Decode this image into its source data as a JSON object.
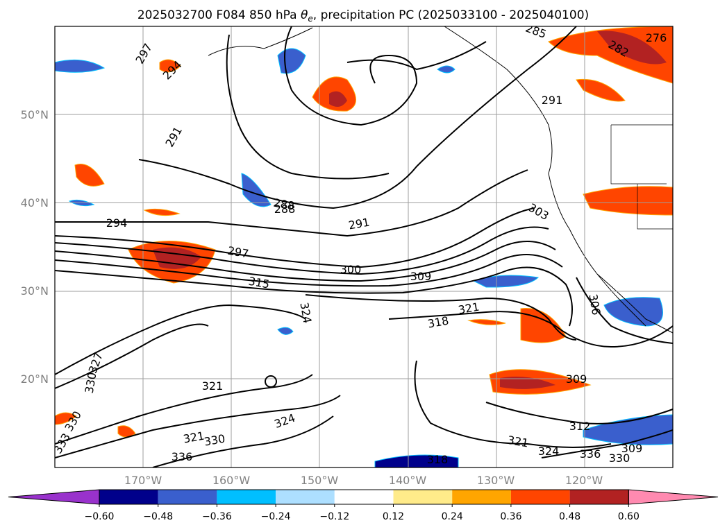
{
  "title_parts": {
    "prefix": "2025032700 F084 850 hPa ",
    "theta": "θ",
    "theta_sub": "e",
    "suffix": ", precipitation PC (2025033100 - 2025040100)"
  },
  "map": {
    "lat_ticks": [
      {
        "label": "50°N",
        "value": 50
      },
      {
        "label": "40°N",
        "value": 40
      },
      {
        "label": "30°N",
        "value": 30
      },
      {
        "label": "20°N",
        "value": 20
      }
    ],
    "lon_ticks": [
      {
        "label": "170°W",
        "value": -170
      },
      {
        "label": "160°W",
        "value": -160
      },
      {
        "label": "150°W",
        "value": -150
      },
      {
        "label": "140°W",
        "value": -140
      },
      {
        "label": "130°W",
        "value": -130
      },
      {
        "label": "120°W",
        "value": -120
      }
    ],
    "contour_labels": [
      "297",
      "294",
      "291",
      "288",
      "285",
      "282",
      "276",
      "291",
      "294",
      "288",
      "291",
      "303",
      "297",
      "315",
      "324",
      "300",
      "309",
      "306",
      "321",
      "318",
      "327",
      "330",
      "321",
      "324",
      "321",
      "330",
      "336",
      "309",
      "312",
      "321",
      "324",
      "336",
      "330",
      "309",
      "318",
      "330",
      "333"
    ],
    "grid": true
  },
  "colorbar": {
    "ticks": [
      "−0.60",
      "−0.48",
      "−0.36",
      "−0.24",
      "−0.12",
      "0.12",
      "0.24",
      "0.36",
      "0.48",
      "0.60"
    ],
    "colors": {
      "under": "#9932CC",
      "c1": "#00008B",
      "c2": "#3A5FCD",
      "c3": "#00BFFF",
      "c4": "#ADDFFF",
      "c5": "#FFFFFF",
      "c6": "#FFEB8A",
      "c7": "#FFA500",
      "c8": "#FF4500",
      "c9": "#B22222",
      "over": "#FF8AB0"
    }
  }
}
